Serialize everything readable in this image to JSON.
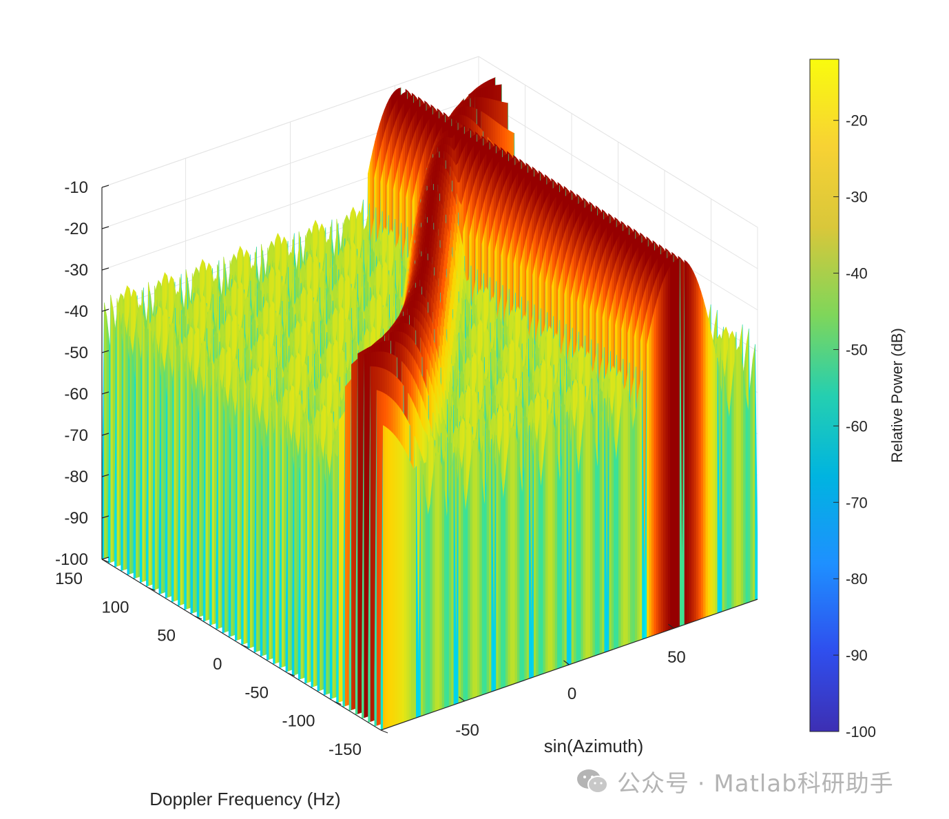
{
  "chart_data": {
    "type": "surface",
    "title": "",
    "xlabel": "sin(Azimuth)",
    "ylabel": "Doppler Frequency (Hz)",
    "zlabel": "",
    "colorbar_label": "Relative Power (dB)",
    "colormap": "jet",
    "clim": [
      -100,
      -12
    ],
    "xlim": [
      -90,
      90
    ],
    "ylim": [
      -150,
      150
    ],
    "zlim": [
      -100,
      -10
    ],
    "xticks": [
      "-50",
      "0",
      "50"
    ],
    "yticks": [
      "150",
      "100",
      "50",
      "0",
      "-50",
      "-100",
      "-150"
    ],
    "zticks": [
      "-10",
      "-20",
      "-30",
      "-40",
      "-50",
      "-60",
      "-70",
      "-80",
      "-90",
      "-100"
    ],
    "colorbar_ticks": [
      "-20",
      "-30",
      "-40",
      "-50",
      "-60",
      "-70",
      "-80",
      "-90",
      "-100"
    ],
    "grid": true,
    "clutter_ridge_peak_db": -12,
    "jammer_peak_db": -11,
    "noise_floor_db": -60
  },
  "watermark": {
    "text": "公众号 · Matlab科研助手",
    "icon": "wechat-icon"
  }
}
